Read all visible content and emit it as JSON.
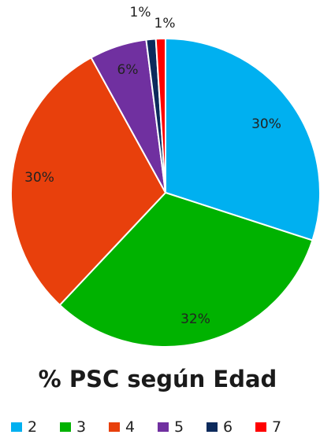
{
  "chart_data": {
    "type": "pie",
    "title": "% PSC según Edad",
    "legend_position": "bottom",
    "slices": [
      {
        "category": "2",
        "value": 30,
        "label": "30%",
        "color": "#00b0f0"
      },
      {
        "category": "3",
        "value": 32,
        "label": "32%",
        "color": "#00b200"
      },
      {
        "category": "4",
        "value": 30,
        "label": "30%",
        "color": "#e8400c"
      },
      {
        "category": "5",
        "value": 6,
        "label": "6%",
        "color": "#7030a0"
      },
      {
        "category": "6",
        "value": 1,
        "label": "1%",
        "color": "#0c2a5c"
      },
      {
        "category": "7",
        "value": 1,
        "label": "1%",
        "color": "#ff0000"
      }
    ]
  }
}
